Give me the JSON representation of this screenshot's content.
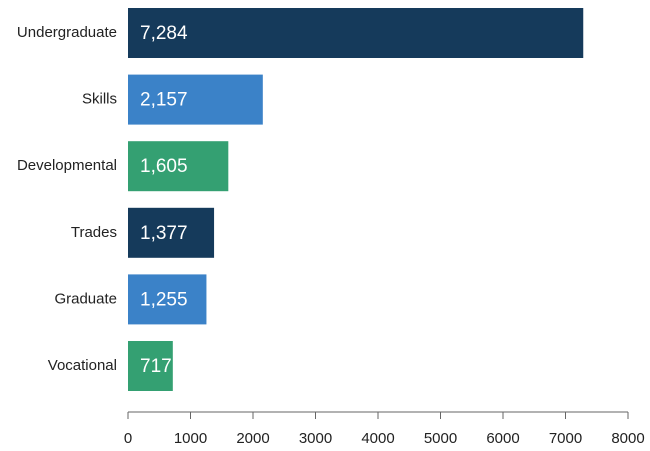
{
  "chart_data": {
    "type": "bar",
    "orientation": "horizontal",
    "title": "",
    "xlabel": "",
    "ylabel": "",
    "categories": [
      "Undergraduate",
      "Skills",
      "Developmental",
      "Trades",
      "Graduate",
      "Vocational"
    ],
    "values": [
      7284,
      2157,
      1605,
      1377,
      1255,
      717
    ],
    "value_labels": [
      "7,284",
      "2,157",
      "1,605",
      "1,377",
      "1,255",
      "717"
    ],
    "bar_colors": [
      "#153a5b",
      "#3b82c8",
      "#34a072",
      "#153a5b",
      "#3b82c8",
      "#34a072"
    ],
    "xlim": [
      0,
      8000
    ],
    "x_ticks": [
      0,
      1000,
      2000,
      3000,
      4000,
      5000,
      6000,
      7000,
      8000
    ],
    "x_tick_labels": [
      "0",
      "1000",
      "2000",
      "3000",
      "4000",
      "5000",
      "6000",
      "7000",
      "8000"
    ],
    "grid": false,
    "legend": null
  }
}
